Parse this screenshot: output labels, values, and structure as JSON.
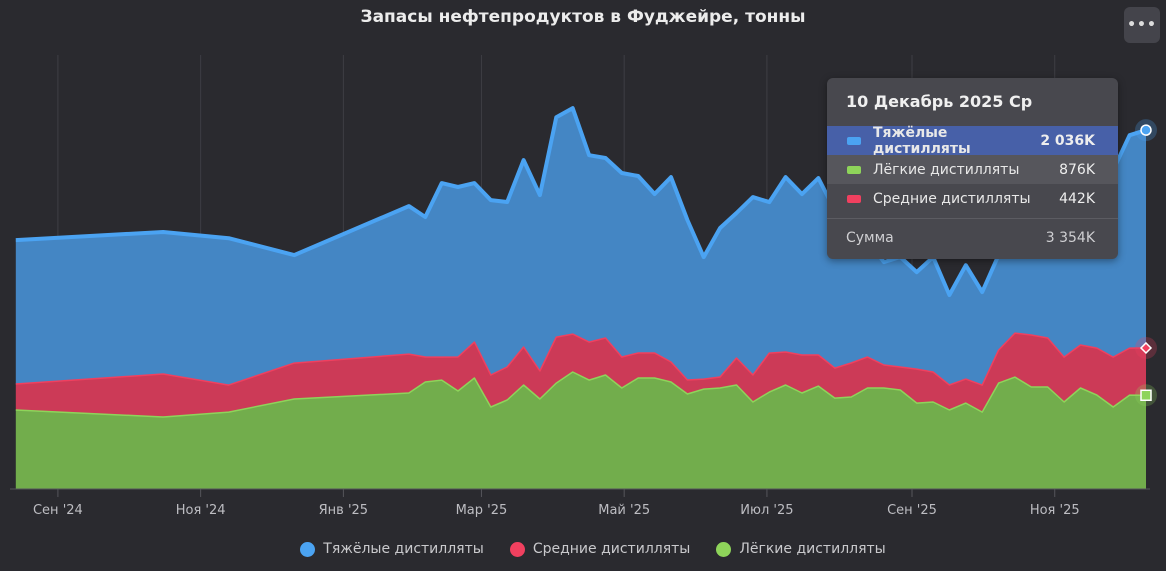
{
  "header": {
    "title": "Запасы нефтепродуктов в Фуджейре, тонны",
    "menu_icon": "ellipsis-icon",
    "menu_label": "•••"
  },
  "colors": {
    "heavy": "#4ba3f2",
    "heavy_fill": "#4486c4",
    "medium": "#f0405f",
    "medium_fill": "#cc3a57",
    "light": "#8ed45a",
    "light_fill": "#72ad4c",
    "background": "#2a2a2f"
  },
  "chart_data": {
    "type": "area",
    "stacked": true,
    "title": "Запасы нефтепродуктов в Фуджейре, тонны",
    "unit": "K",
    "ylim": [
      0,
      4000
    ],
    "grid": "vertical",
    "legend": "bottom",
    "x_ticks": [
      {
        "date": "2024-09-01",
        "label": "Сен '24"
      },
      {
        "date": "2024-11-01",
        "label": "Ноя '24"
      },
      {
        "date": "2025-01-01",
        "label": "Янв '25"
      },
      {
        "date": "2025-03-01",
        "label": "Мар '25"
      },
      {
        "date": "2025-05-01",
        "label": "Май '25"
      },
      {
        "date": "2025-07-01",
        "label": "Июл '25"
      },
      {
        "date": "2025-09-01",
        "label": "Сен '25"
      },
      {
        "date": "2025-11-01",
        "label": "Ноя '25"
      }
    ],
    "x": [
      "2024-08-14",
      "2024-10-16",
      "2024-11-13",
      "2024-12-11",
      "2025-01-29",
      "2025-02-05",
      "2025-02-12",
      "2025-02-19",
      "2025-02-26",
      "2025-03-05",
      "2025-03-12",
      "2025-03-19",
      "2025-03-26",
      "2025-04-02",
      "2025-04-09",
      "2025-04-16",
      "2025-04-23",
      "2025-04-30",
      "2025-05-07",
      "2025-05-14",
      "2025-05-21",
      "2025-05-28",
      "2025-06-04",
      "2025-06-11",
      "2025-06-18",
      "2025-06-25",
      "2025-07-02",
      "2025-07-09",
      "2025-07-16",
      "2025-07-23",
      "2025-07-30",
      "2025-08-06",
      "2025-08-13",
      "2025-08-20",
      "2025-08-27",
      "2025-09-03",
      "2025-09-10",
      "2025-09-17",
      "2025-09-24",
      "2025-10-01",
      "2025-10-08",
      "2025-10-15",
      "2025-10-22",
      "2025-10-29",
      "2025-11-05",
      "2025-11-12",
      "2025-11-19",
      "2025-11-26",
      "2025-12-03",
      "2025-12-10"
    ],
    "series": [
      {
        "key": "light",
        "name": "Лёгкие дистилляты",
        "values": [
          738,
          673,
          719,
          841,
          897,
          1000,
          1018,
          916,
          1037,
          766,
          832,
          972,
          841,
          990,
          1093,
          1018,
          1065,
          944,
          1037,
          1037,
          1000,
          888,
          934,
          944,
          972,
          813,
          906,
          972,
          897,
          962,
          850,
          860,
          944,
          944,
          925,
          803,
          813,
          738,
          803,
          719,
          990,
          1046,
          953,
          953,
          813,
          944,
          878,
          766,
          878,
          876
        ]
      },
      {
        "key": "medium",
        "name": "Средние дистилляты",
        "values": [
          243,
          402,
          252,
          336,
          364,
          234,
          215,
          318,
          336,
          299,
          308,
          355,
          262,
          430,
          355,
          355,
          346,
          290,
          234,
          234,
          187,
          131,
          93,
          103,
          252,
          252,
          364,
          308,
          355,
          290,
          280,
          318,
          290,
          215,
          215,
          318,
          280,
          234,
          224,
          252,
          308,
          411,
          486,
          458,
          420,
          402,
          439,
          467,
          439,
          442
        ]
      },
      {
        "key": "heavy",
        "name": "Тяжёлые дистилляты",
        "values": [
          1345,
          1327,
          1373,
          1009,
          1383,
          1308,
          1626,
          1588,
          1486,
          1635,
          1542,
          1747,
          1644,
          2055,
          2112,
          1747,
          1682,
          1719,
          1654,
          1486,
          1728,
          1495,
          1140,
          1392,
          1355,
          1663,
          1411,
          1635,
          1504,
          1654,
          1476,
          1289,
          1093,
          962,
          1028,
          906,
          1074,
          841,
          1065,
          869,
          888,
          916,
          1121,
          1243,
          1327,
          1401,
          1476,
          1747,
          1990,
          2036
        ]
      }
    ]
  },
  "legend": {
    "items": [
      {
        "label": "Тяжёлые дистилляты",
        "color": "#4ba3f2"
      },
      {
        "label": "Средние дистилляты",
        "color": "#f0405f"
      },
      {
        "label": "Лёгкие дистилляты",
        "color": "#8ed45a"
      }
    ]
  },
  "tooltip": {
    "date": "10 Декабрь 2025 Ср",
    "rows": [
      {
        "label": "Тяжёлые дистилляты",
        "value": "2 036K",
        "color": "#4ba3f2",
        "highlighted": true
      },
      {
        "label": "Лёгкие дистилляты",
        "value": "876K",
        "color": "#8ed45a"
      },
      {
        "label": "Средние дистилляты",
        "value": "442K",
        "color": "#f0405f"
      }
    ],
    "sum_label": "Сумма",
    "sum_value": "3 354K"
  }
}
